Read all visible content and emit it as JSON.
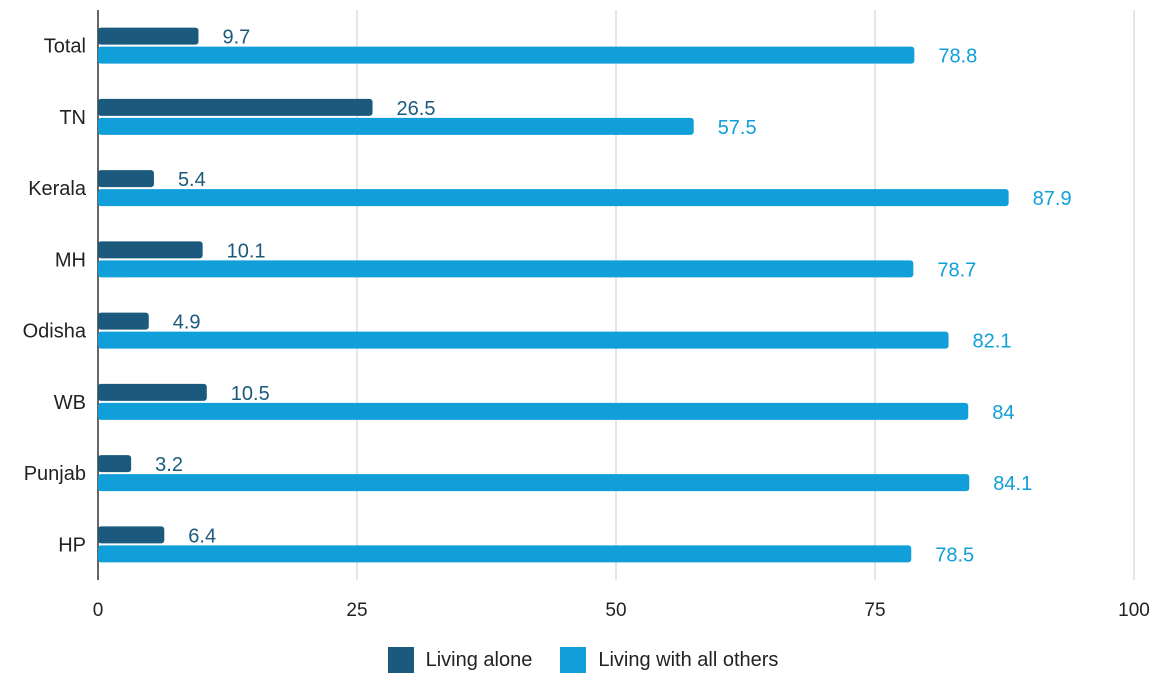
{
  "chart_data": {
    "type": "bar",
    "orientation": "horizontal",
    "categories": [
      "Total",
      "TN",
      "Kerala",
      "MH",
      "Odisha",
      "WB",
      "Punjab",
      "HP"
    ],
    "series": [
      {
        "name": "Living alone",
        "color": "#1b5a7c",
        "label_color": "#1b5a7c",
        "values": [
          9.7,
          26.5,
          5.4,
          10.1,
          4.9,
          10.5,
          3.2,
          6.4
        ],
        "labels": [
          "9.7",
          "26.5",
          "5.4",
          "10.1",
          "4.9",
          "10.5",
          "3.2",
          "6.4"
        ]
      },
      {
        "name": "Living with all others",
        "color": "#109fd9",
        "label_color": "#109fd9",
        "values": [
          78.8,
          57.5,
          87.9,
          78.7,
          82.1,
          84,
          84.1,
          78.5
        ],
        "labels": [
          "78.8",
          "57.5",
          "87.9",
          "78.7",
          "82.1",
          "84",
          "84.1",
          "78.5"
        ]
      }
    ],
    "xlim": [
      0,
      100
    ],
    "xticks": [
      0,
      25,
      50,
      75,
      100
    ],
    "xtick_labels": [
      "0",
      "25",
      "50",
      "75",
      "100"
    ],
    "title": "",
    "xlabel": "",
    "ylabel": "",
    "grid": true,
    "legend_position": "bottom"
  },
  "legend": {
    "items": [
      {
        "label": "Living alone",
        "color": "#1b5a7c"
      },
      {
        "label": "Living with all others",
        "color": "#109fd9"
      }
    ]
  }
}
